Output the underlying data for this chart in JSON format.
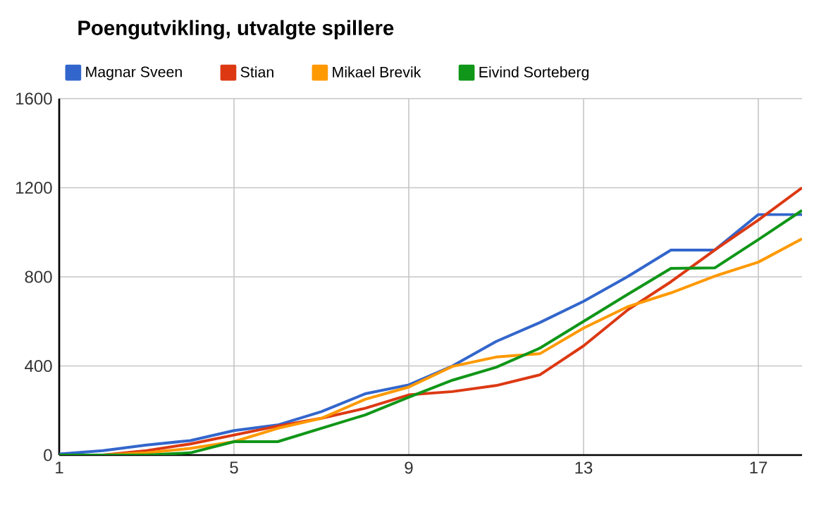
{
  "chart_data": {
    "type": "line",
    "title": "Poengutvikling, utvalgte spillere",
    "x": [
      1,
      2,
      3,
      4,
      5,
      6,
      7,
      8,
      9,
      10,
      11,
      12,
      13,
      14,
      15,
      16,
      17,
      18
    ],
    "series": [
      {
        "name": "Magnar Sveen",
        "color": "#3366cc",
        "values": [
          5,
          20,
          45,
          65,
          110,
          135,
          195,
          275,
          315,
          400,
          510,
          595,
          690,
          800,
          920,
          920,
          1080,
          1080
        ]
      },
      {
        "name": "Stian",
        "color": "#dc3912",
        "values": [
          0,
          0,
          20,
          50,
          90,
          130,
          165,
          210,
          270,
          285,
          312,
          360,
          490,
          650,
          778,
          920,
          1055,
          1200
        ]
      },
      {
        "name": "Mikael Brevik",
        "color": "#ff9900",
        "values": [
          0,
          0,
          10,
          30,
          60,
          120,
          165,
          250,
          305,
          398,
          440,
          455,
          570,
          665,
          728,
          803,
          866,
          971
        ]
      },
      {
        "name": "Eivind Sorteberg",
        "color": "#109618",
        "values": [
          0,
          0,
          0,
          10,
          60,
          60,
          120,
          180,
          260,
          336,
          394,
          480,
          600,
          720,
          838,
          840,
          967,
          1098
        ]
      }
    ],
    "xlim": [
      1,
      18
    ],
    "xticks": [
      1,
      5,
      9,
      13,
      17
    ],
    "ylim": [
      0,
      1600
    ],
    "yticks": [
      0,
      400,
      800,
      1200,
      1600
    ],
    "grid": true,
    "legend": "top",
    "marker": "none",
    "line_style": "solid"
  }
}
